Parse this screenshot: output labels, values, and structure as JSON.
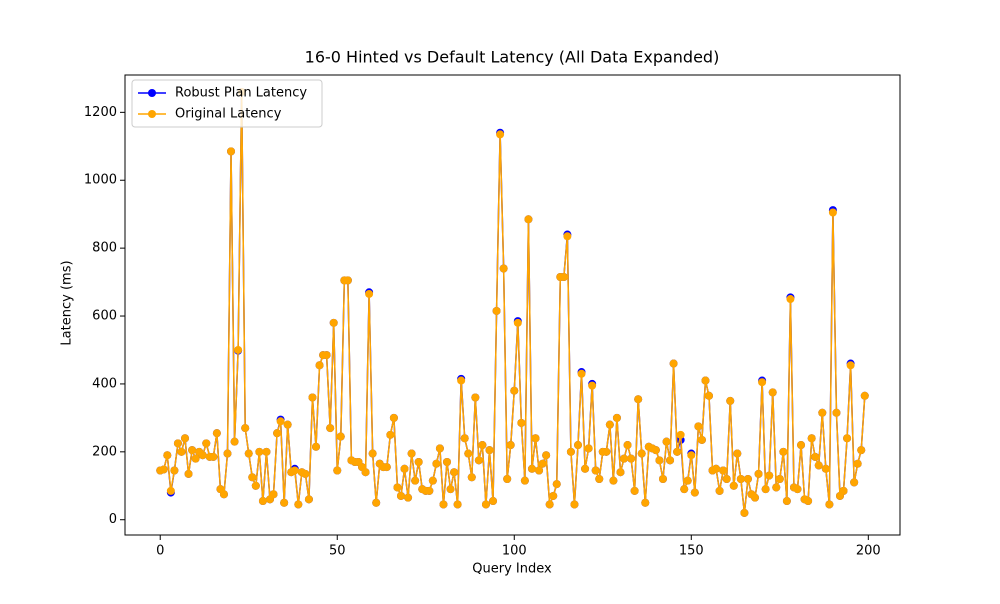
{
  "chart_data": {
    "type": "line",
    "title": "16-0 Hinted vs Default Latency (All Data Expanded)",
    "xlabel": "Query Index",
    "ylabel": "Latency (ms)",
    "x": [
      0,
      1,
      2,
      3,
      4,
      5,
      6,
      7,
      8,
      9,
      10,
      11,
      12,
      13,
      14,
      15,
      16,
      17,
      18,
      19,
      20,
      21,
      22,
      23,
      24,
      25,
      26,
      27,
      28,
      29,
      30,
      31,
      32,
      33,
      34,
      35,
      36,
      37,
      38,
      39,
      40,
      41,
      42,
      43,
      44,
      45,
      46,
      47,
      48,
      49,
      50,
      51,
      52,
      53,
      54,
      55,
      56,
      57,
      58,
      59,
      60,
      61,
      62,
      63,
      64,
      65,
      66,
      67,
      68,
      69,
      70,
      71,
      72,
      73,
      74,
      75,
      76,
      77,
      78,
      79,
      80,
      81,
      82,
      83,
      84,
      85,
      86,
      87,
      88,
      89,
      90,
      91,
      92,
      93,
      94,
      95,
      96,
      97,
      98,
      99,
      100,
      101,
      102,
      103,
      104,
      105,
      106,
      107,
      108,
      109,
      110,
      111,
      112,
      113,
      114,
      115,
      116,
      117,
      118,
      119,
      120,
      121,
      122,
      123,
      124,
      125,
      126,
      127,
      128,
      129,
      130,
      131,
      132,
      133,
      134,
      135,
      136,
      137,
      138,
      139,
      140,
      141,
      142,
      143,
      144,
      145,
      146,
      147,
      148,
      149,
      150,
      151,
      152,
      153,
      154,
      155,
      156,
      157,
      158,
      159,
      160,
      161,
      162,
      163,
      164,
      165,
      166,
      167,
      168,
      169,
      170,
      171,
      172,
      173,
      174,
      175,
      176,
      177,
      178,
      179,
      180,
      181,
      182,
      183,
      184,
      185,
      186,
      187,
      188,
      189,
      190,
      191,
      192,
      193,
      194,
      195,
      196,
      197,
      198,
      199
    ],
    "series": [
      {
        "name": "Robust Plan Latency",
        "color": "#0000ff",
        "values": [
          145,
          148,
          190,
          80,
          145,
          225,
          200,
          240,
          135,
          205,
          180,
          200,
          190,
          225,
          185,
          185,
          255,
          90,
          75,
          195,
          1085,
          230,
          498,
          1260,
          270,
          195,
          125,
          100,
          200,
          55,
          200,
          60,
          75,
          255,
          295,
          50,
          280,
          140,
          150,
          45,
          140,
          135,
          60,
          360,
          215,
          455,
          485,
          485,
          270,
          580,
          145,
          245,
          705,
          705,
          175,
          170,
          170,
          155,
          140,
          670,
          195,
          50,
          165,
          155,
          155,
          250,
          300,
          95,
          70,
          150,
          65,
          195,
          115,
          170,
          90,
          85,
          85,
          115,
          165,
          210,
          45,
          170,
          90,
          140,
          45,
          415,
          240,
          195,
          125,
          360,
          175,
          220,
          45,
          205,
          55,
          615,
          1140,
          740,
          120,
          220,
          380,
          585,
          285,
          115,
          885,
          150,
          240,
          145,
          165,
          190,
          45,
          70,
          105,
          715,
          715,
          840,
          200,
          45,
          220,
          435,
          150,
          210,
          400,
          145,
          120,
          200,
          200,
          280,
          115,
          300,
          140,
          180,
          220,
          180,
          85,
          355,
          195,
          50,
          215,
          210,
          205,
          175,
          120,
          230,
          175,
          460,
          200,
          235,
          90,
          115,
          195,
          80,
          275,
          235,
          410,
          365,
          145,
          150,
          85,
          145,
          120,
          350,
          100,
          195,
          120,
          20,
          120,
          75,
          65,
          135,
          410,
          90,
          130,
          375,
          95,
          120,
          200,
          55,
          655,
          95,
          90,
          220,
          60,
          55,
          240,
          185,
          160,
          315,
          150,
          45,
          912,
          315,
          70,
          85,
          240,
          460,
          110,
          165,
          205,
          365
        ]
      },
      {
        "name": "Original Latency",
        "color": "#ffa500",
        "values": [
          145,
          148,
          190,
          85,
          145,
          225,
          200,
          240,
          135,
          205,
          180,
          200,
          190,
          225,
          185,
          185,
          255,
          90,
          75,
          195,
          1085,
          230,
          500,
          1260,
          270,
          195,
          125,
          100,
          200,
          55,
          200,
          60,
          75,
          255,
          290,
          50,
          280,
          140,
          145,
          45,
          140,
          135,
          60,
          360,
          215,
          455,
          485,
          485,
          270,
          580,
          145,
          245,
          705,
          705,
          175,
          170,
          170,
          155,
          140,
          665,
          195,
          50,
          165,
          155,
          155,
          250,
          300,
          95,
          70,
          150,
          65,
          195,
          115,
          170,
          90,
          85,
          85,
          115,
          165,
          210,
          45,
          170,
          90,
          140,
          45,
          410,
          240,
          195,
          125,
          360,
          175,
          220,
          45,
          205,
          55,
          615,
          1135,
          740,
          120,
          220,
          380,
          580,
          285,
          115,
          885,
          150,
          240,
          145,
          165,
          190,
          45,
          70,
          105,
          715,
          715,
          835,
          200,
          45,
          220,
          430,
          150,
          210,
          395,
          145,
          120,
          200,
          200,
          280,
          115,
          300,
          140,
          180,
          220,
          180,
          85,
          355,
          195,
          50,
          215,
          210,
          205,
          175,
          120,
          230,
          175,
          460,
          200,
          250,
          90,
          115,
          190,
          80,
          275,
          235,
          410,
          365,
          145,
          150,
          85,
          145,
          120,
          350,
          100,
          195,
          120,
          20,
          120,
          75,
          65,
          135,
          405,
          90,
          130,
          375,
          95,
          120,
          200,
          55,
          650,
          95,
          90,
          220,
          60,
          55,
          240,
          185,
          160,
          315,
          150,
          45,
          905,
          315,
          70,
          85,
          240,
          455,
          110,
          165,
          205,
          365
        ]
      }
    ],
    "xlim": [
      -9.95,
      208.95
    ],
    "ylim": [
      -45,
      1310
    ],
    "xticks": [
      0,
      50,
      100,
      150,
      200
    ],
    "yticks": [
      0,
      200,
      400,
      600,
      800,
      1000,
      1200
    ],
    "legend": "upper left"
  }
}
